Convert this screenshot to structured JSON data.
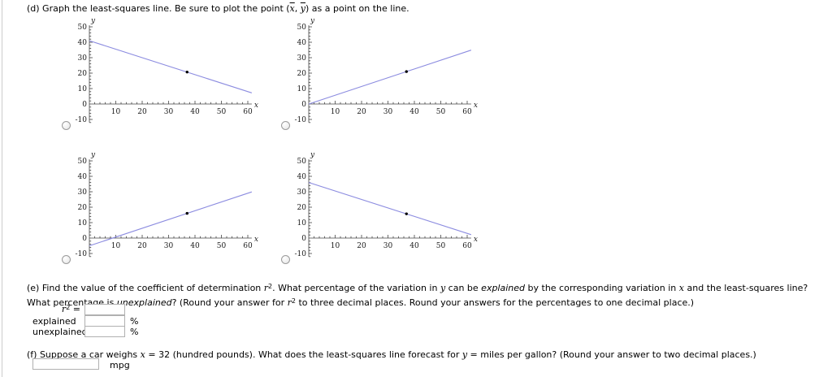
{
  "question_d": {
    "prefix": "(d) Graph the least-squares line. Be sure to plot the point (",
    "xbar": "x",
    "comma": ", ",
    "ybar": "y",
    "suffix": ") as a point on the line."
  },
  "chart_data": [
    {
      "id": "option-a",
      "type": "line",
      "xlabel": "x",
      "ylabel": "y",
      "xlim": [
        0,
        61.5
      ],
      "ylim": [
        -12,
        52
      ],
      "x_ticks": [
        10,
        20,
        30,
        40,
        50,
        60
      ],
      "y_ticks": [
        -10,
        0,
        10,
        20,
        30,
        40,
        50
      ],
      "line": {
        "x1": 0,
        "y1": 41,
        "x2": 61.5,
        "y2": 7.2
      },
      "mean_point": {
        "x": 37,
        "y": 20.7
      },
      "line_color": "#8c8ce0",
      "point_color": "#000000",
      "legend": "off",
      "grid": "off"
    },
    {
      "id": "option-b",
      "type": "line",
      "xlabel": "x",
      "ylabel": "y",
      "xlim": [
        0,
        61.5
      ],
      "ylim": [
        -12,
        52
      ],
      "x_ticks": [
        10,
        20,
        30,
        40,
        50,
        60
      ],
      "y_ticks": [
        -10,
        0,
        10,
        20,
        30,
        40,
        50
      ],
      "line": {
        "x1": 0,
        "y1": 0,
        "x2": 61.5,
        "y2": 34.9
      },
      "mean_point": {
        "x": 37,
        "y": 21
      },
      "line_color": "#8c8ce0",
      "point_color": "#000000",
      "legend": "off",
      "grid": "off"
    },
    {
      "id": "option-c",
      "type": "line",
      "xlabel": "x",
      "ylabel": "y",
      "xlim": [
        0,
        61.5
      ],
      "ylim": [
        -12,
        52
      ],
      "x_ticks": [
        10,
        20,
        30,
        40,
        50,
        60
      ],
      "y_ticks": [
        -10,
        0,
        10,
        20,
        30,
        40,
        50
      ],
      "line": {
        "x1": 0,
        "y1": -5,
        "x2": 61.5,
        "y2": 29.9
      },
      "mean_point": {
        "x": 37,
        "y": 16
      },
      "line_color": "#8c8ce0",
      "point_color": "#000000",
      "legend": "off",
      "grid": "off"
    },
    {
      "id": "option-d",
      "type": "line",
      "xlabel": "x",
      "ylabel": "y",
      "xlim": [
        0,
        61.5
      ],
      "ylim": [
        -12,
        52
      ],
      "x_ticks": [
        10,
        20,
        30,
        40,
        50,
        60
      ],
      "y_ticks": [
        -10,
        0,
        10,
        20,
        30,
        40,
        50
      ],
      "line": {
        "x1": 0,
        "y1": 36,
        "x2": 61.5,
        "y2": 2.2
      },
      "mean_point": {
        "x": 37,
        "y": 15.7
      },
      "line_color": "#8c8ce0",
      "point_color": "#000000",
      "legend": "off",
      "grid": "off"
    }
  ],
  "question_e": {
    "seg1": "(e) Find the value of the coefficient of determination ",
    "r_var": "r",
    "sup2": "2",
    "seg2": ". What percentage of the variation in ",
    "y_var": "y",
    "seg3": " can be ",
    "explained_word": "explained",
    "seg4": " by the corresponding variation in ",
    "x_var": "x",
    "seg5": " and the least-squares line? What percentage is ",
    "unexplained_word": "unexplained",
    "seg6": "? (Round your answer for ",
    "r_var2": "r",
    "sup2b": "2",
    "seg7": " to three decimal places. Round your answers for the percentages to one decimal place.)",
    "r2_label_r": "r",
    "r2_label_sup": "2",
    "r2_label_eq": " =",
    "r2_value": "",
    "explained_label": "explained",
    "explained_value": "",
    "explained_pct": "%",
    "unexplained_label": "unexplained",
    "unexplained_value": "",
    "unexplained_pct": "%"
  },
  "question_f": {
    "seg1": "(f) Suppose a car weighs ",
    "x_var": "x",
    "seg2": " = 32 (hundred pounds). What does the least-squares line forecast for ",
    "y_var": "y",
    "seg3": " = miles per gallon? (Round your answer to two decimal places.)",
    "value": "",
    "unit": "mpg"
  }
}
